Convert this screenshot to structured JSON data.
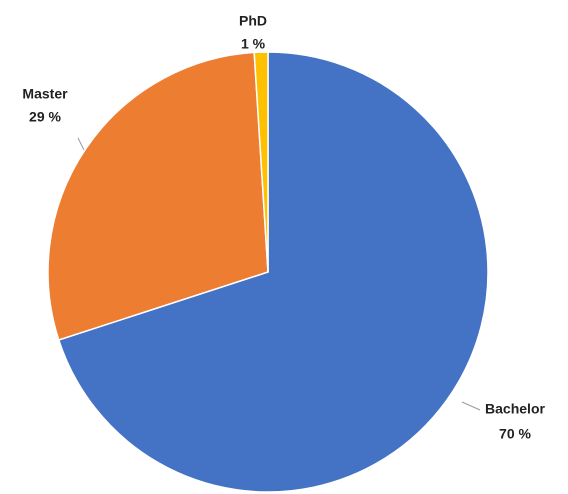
{
  "chart_data": {
    "type": "pie",
    "categories": [
      "Bachelor",
      "Master",
      "PhD"
    ],
    "values": [
      70,
      29,
      1
    ],
    "value_labels": [
      "70 %",
      "29 %",
      "1 %"
    ],
    "colors": [
      "#4472c4",
      "#ed7d31",
      "#ffc000"
    ]
  }
}
